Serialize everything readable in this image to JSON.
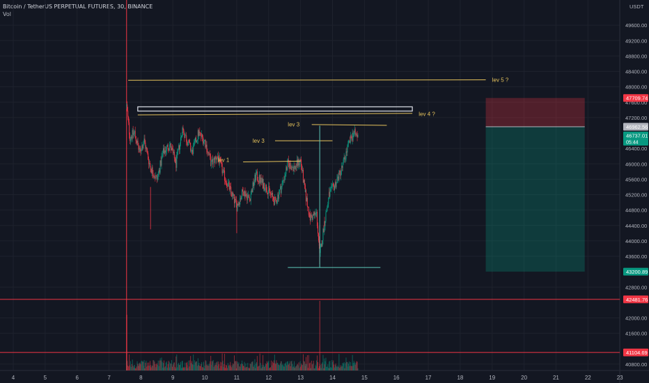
{
  "header": {
    "symbol_line": "Bitcoin / TetherUS PERPETUAL FUTURES, 30, BINANCE",
    "volume_label": "Vol"
  },
  "chart_data": {
    "type": "candlestick",
    "currency": "USDT",
    "y_range": [
      40600,
      50000
    ],
    "x_range": [
      3.6,
      23.1
    ],
    "x_ticks": [
      {
        "v": 4,
        "label": "4"
      },
      {
        "v": 5,
        "label": "5"
      },
      {
        "v": 6,
        "label": "6"
      },
      {
        "v": 7,
        "label": "7"
      },
      {
        "v": 8,
        "label": "8"
      },
      {
        "v": 9,
        "label": "9"
      },
      {
        "v": 10,
        "label": "10"
      },
      {
        "v": 11,
        "label": "11"
      },
      {
        "v": 12,
        "label": "12"
      },
      {
        "v": 13,
        "label": "13"
      },
      {
        "v": 14,
        "label": "14"
      },
      {
        "v": 15,
        "label": "15"
      },
      {
        "v": 16,
        "label": "16"
      },
      {
        "v": 17,
        "label": "17"
      },
      {
        "v": 18,
        "label": "18"
      },
      {
        "v": 19,
        "label": "19"
      },
      {
        "v": 20,
        "label": "20"
      },
      {
        "v": 21,
        "label": "21"
      },
      {
        "v": 22,
        "label": "22"
      },
      {
        "v": 23,
        "label": "23"
      }
    ],
    "y_ticks": [
      {
        "v": 49600,
        "label": "49600.00"
      },
      {
        "v": 49200,
        "label": "49200.00"
      },
      {
        "v": 48800,
        "label": "48800.00"
      },
      {
        "v": 48400,
        "label": "48400.00"
      },
      {
        "v": 48000,
        "label": "48000.00"
      },
      {
        "v": 47600,
        "label": "47600.00"
      },
      {
        "v": 47200,
        "label": "47200.00"
      },
      {
        "v": 46400,
        "label": "46400.00"
      },
      {
        "v": 46000,
        "label": "46000.00"
      },
      {
        "v": 45600,
        "label": "45600.00"
      },
      {
        "v": 45200,
        "label": "45200.00"
      },
      {
        "v": 44800,
        "label": "44800.00"
      },
      {
        "v": 44400,
        "label": "44400.00"
      },
      {
        "v": 44000,
        "label": "44000.00"
      },
      {
        "v": 43600,
        "label": "43600.00"
      },
      {
        "v": 42800,
        "label": "42800.00"
      },
      {
        "v": 42000,
        "label": "42000.00"
      },
      {
        "v": 41600,
        "label": "41600.00"
      },
      {
        "v": 40800,
        "label": "40800.00"
      }
    ],
    "price_tags": [
      {
        "label": "47709.74",
        "value": 47709.74,
        "color": "#f23645"
      },
      {
        "label": "46962.56",
        "value": 46962.56,
        "color": "#b2b5be"
      },
      {
        "label": "46737.01",
        "value": 46737.01,
        "color": "#089981",
        "sub": "05:44"
      },
      {
        "label": "43200.89",
        "value": 43200.89,
        "color": "#089981"
      },
      {
        "label": "42481.76",
        "value": 42481.76,
        "color": "#f23645"
      },
      {
        "label": "41104.69",
        "value": 41104.69,
        "color": "#f23645"
      }
    ],
    "horizontal_levels": [
      {
        "price": 42481.76,
        "color": "#f23645"
      },
      {
        "price": 41104.69,
        "color": "#f23645"
      }
    ],
    "vertical_marker": {
      "x": 7.55,
      "color": "#f23645"
    },
    "annotations": [
      {
        "text": "lev 5 ?",
        "x1": 7.6,
        "x2": 18.8,
        "y1": 48170,
        "y2": 48180,
        "lx": 19.0,
        "ly": 48180
      },
      {
        "text": "lev 4 ?",
        "x1": 7.9,
        "x2": 16.5,
        "y1": 47270,
        "y2": 47310,
        "lx": 16.7,
        "ly": 47300
      },
      {
        "text": "lev 3",
        "x1": 13.35,
        "x2": 15.7,
        "y1": 47020,
        "y2": 47000,
        "lx": 12.6,
        "ly": 47030
      },
      {
        "text": "lev 3",
        "x1": 12.2,
        "x2": 14.0,
        "y1": 46600,
        "y2": 46600,
        "lx": 11.5,
        "ly": 46600
      },
      {
        "text": "lev 1",
        "x1": 11.2,
        "x2": 13.0,
        "y1": 46050,
        "y2": 46070,
        "lx": 10.4,
        "ly": 46100
      }
    ],
    "highlight_box": {
      "x1": 7.9,
      "x2": 16.5,
      "y1": 47370,
      "y2": 47480
    },
    "measure_line": {
      "x": 13.6,
      "y1": 43310,
      "y2": 46990
    },
    "base_line": {
      "x1": 12.6,
      "x2": 15.5,
      "y": 43310
    },
    "position_tool": {
      "x1": 18.8,
      "x2": 21.9,
      "entry": 46962.56,
      "stop": 47709.74,
      "target": 43200.89
    },
    "ohlc_keypoints": [
      [
        7.55,
        47500
      ],
      [
        7.65,
        46700
      ],
      [
        7.8,
        46800
      ],
      [
        7.95,
        46300
      ],
      [
        8.1,
        46600
      ],
      [
        8.3,
        45900
      ],
      [
        8.5,
        45600
      ],
      [
        8.7,
        46300
      ],
      [
        8.9,
        46500
      ],
      [
        9.1,
        46000
      ],
      [
        9.3,
        46900
      ],
      [
        9.45,
        46600
      ],
      [
        9.6,
        46300
      ],
      [
        9.8,
        46800
      ],
      [
        10.0,
        46600
      ],
      [
        10.2,
        46000
      ],
      [
        10.4,
        46200
      ],
      [
        10.6,
        45700
      ],
      [
        10.8,
        45300
      ],
      [
        11.0,
        44900
      ],
      [
        11.2,
        45300
      ],
      [
        11.4,
        45100
      ],
      [
        11.6,
        45700
      ],
      [
        11.8,
        45500
      ],
      [
        12.0,
        45300
      ],
      [
        12.2,
        45000
      ],
      [
        12.4,
        45400
      ],
      [
        12.6,
        46000
      ],
      [
        12.8,
        45900
      ],
      [
        13.0,
        46100
      ],
      [
        13.15,
        45200
      ],
      [
        13.3,
        44600
      ],
      [
        13.5,
        44700
      ],
      [
        13.6,
        43600
      ],
      [
        13.75,
        44500
      ],
      [
        13.9,
        45200
      ],
      [
        14.1,
        45500
      ],
      [
        14.3,
        45900
      ],
      [
        14.5,
        46500
      ],
      [
        14.65,
        46800
      ],
      [
        14.8,
        46700
      ]
    ]
  }
}
